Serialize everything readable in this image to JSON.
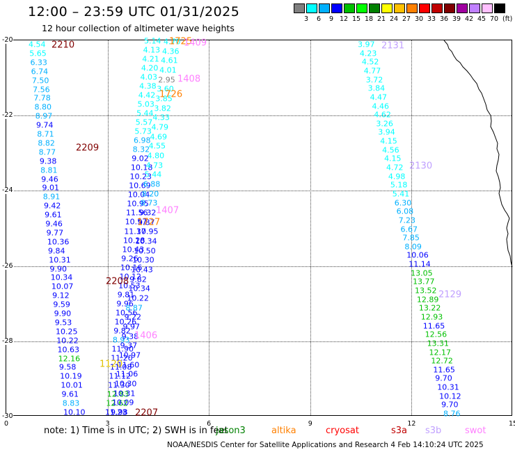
{
  "header": {
    "title": "12:00 – 23:59 UTC 01/31/2025",
    "subtitle": "12 hour collection of altimeter wave heights"
  },
  "colorbar": {
    "colors": [
      "#808080",
      "#00ffff",
      "#00b0ff",
      "#0000ff",
      "#00c000",
      "#00ff00",
      "#008000",
      "#ffff00",
      "#ffc000",
      "#ff8000",
      "#ff0000",
      "#c00000",
      "#800000",
      "#a000a0",
      "#c080ff",
      "#ffc0ff",
      "#000000"
    ],
    "labels": [
      "3",
      "6",
      "9",
      "12",
      "15",
      "18",
      "21",
      "24",
      "27",
      "30",
      "33",
      "36",
      "39",
      "42",
      "45",
      "70"
    ],
    "unit": "(ft)"
  },
  "axes": {
    "y_ticks": [
      "-20",
      "-22",
      "-24",
      "-26",
      "-28",
      "-30"
    ],
    "x_ticks": [
      "0",
      "3",
      "6",
      "9",
      "12",
      "15"
    ]
  },
  "tracks": [
    {
      "id": "2210",
      "color": "#800000"
    },
    {
      "id": "2209",
      "color": "#800000"
    },
    {
      "id": "2208",
      "color": "#800000"
    },
    {
      "id": "2207",
      "color": "#800000"
    },
    {
      "id": "1725",
      "color": "#ff8000"
    },
    {
      "id": "1726",
      "color": "#ff8000"
    },
    {
      "id": "1727",
      "color": "#ff8000"
    },
    {
      "id": "1409",
      "color": "#ff80ff"
    },
    {
      "id": "1408",
      "color": "#ff80ff"
    },
    {
      "id": "1407",
      "color": "#ff80ff"
    },
    {
      "id": "1406",
      "color": "#ff80ff"
    },
    {
      "id": "2131",
      "color": "#c0a0ff"
    },
    {
      "id": "2130",
      "color": "#c0a0ff"
    },
    {
      "id": "2129",
      "color": "#c0a0ff"
    },
    {
      "id": "1120",
      "color": "#e0c000"
    }
  ],
  "observations": {
    "col_a": [
      "4.54",
      "5.65",
      "6.33",
      "6.74",
      "7.50",
      "7.56",
      "7.78",
      "8.80",
      "8.97",
      "9.74",
      "8.71",
      "8.82",
      "8.77",
      "9.38",
      "8.81",
      "9.46",
      "9.01",
      "8.91",
      "9.42",
      "9.61",
      "9.46",
      "9.77",
      "10.36",
      "9.84",
      "10.31",
      "9.90",
      "10.34",
      "10.07",
      "9.12",
      "9.59",
      "9.90",
      "9.53",
      "10.25",
      "10.22",
      "10.63",
      "12.16",
      "9.58",
      "10.19",
      "10.01",
      "9.61",
      "8.83",
      "10.10"
    ],
    "col_b": [
      "5.14",
      "4.13",
      "4.21",
      "4.20",
      "4.03",
      "4.38",
      "4.42",
      "5.03",
      "5.44",
      "5.57",
      "5.73",
      "6.98",
      "8.32",
      "9.02",
      "10.18",
      "10.23",
      "10.69",
      "10.04",
      "10.95",
      "11.56",
      "10.57",
      "11.37",
      "10.28",
      "10.43",
      "9.26",
      "10.16",
      "10.12",
      "10.53",
      "9.81",
      "9.96",
      "10.56",
      "10.26",
      "9.82",
      "8.93",
      "11.90",
      "11.20",
      "11.08",
      "11.12",
      "11.30",
      "12.83",
      "12.62",
      "11.23"
    ],
    "col_c": [
      "4.70",
      "4.36",
      "4.61",
      "4.01",
      "2.95",
      "3.60",
      "3.85",
      "3.82",
      "4.33",
      "4.79",
      "4.69",
      "4.55",
      "4.80",
      "4.73",
      "5.44",
      "6.88",
      "8.20",
      "8.73",
      "9.32",
      "9.87",
      "10.95",
      "10.34",
      "10.50",
      "10.30",
      "10.43",
      "9.82",
      "10.34",
      "10.22",
      "8.87",
      "9.22",
      "9.97",
      "9.38",
      "9.37",
      "10.97",
      "11.60",
      "11.06",
      "10.30",
      "10.31",
      "10.09",
      "9.98"
    ],
    "col_d": [
      "3.97",
      "4.23",
      "4.52",
      "4.77",
      "3.72",
      "3.84",
      "4.47",
      "4.46",
      "4.62",
      "3.26",
      "3.94",
      "4.15",
      "4.56",
      "4.15",
      "4.72",
      "4.98",
      "5.18",
      "5.41",
      "6.30",
      "6.08",
      "7.23",
      "6.67",
      "7.85",
      "8.09",
      "10.06",
      "11.14",
      "13.05",
      "13.77",
      "13.52",
      "12.89",
      "13.22",
      "12.93",
      "11.65",
      "12.56",
      "13.31",
      "12.17",
      "12.72",
      "11.65",
      "9.70",
      "10.31",
      "10.12",
      "9.70",
      "8.76"
    ]
  },
  "note": "note:  1) Time is in UTC; 2) SWH is in feet",
  "satellites": [
    "jason3",
    "altika",
    "cryosat",
    "s3a",
    "s3b",
    "swot"
  ],
  "footer": "NOAA/NESDIS Center for Satellite Applications and Research    4 Feb 14:10:24 UTC 2025"
}
